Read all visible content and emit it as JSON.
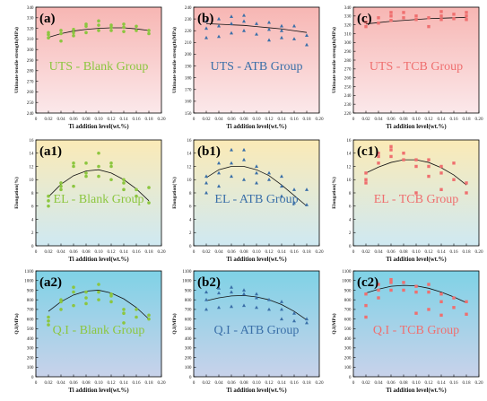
{
  "colors": {
    "blank": "#8cc63f",
    "atb": "#3a6fa8",
    "tcb": "#ef6f6f",
    "row_uts": [
      "#f7b6b3",
      "#fbe8ea"
    ],
    "row_el": [
      "#fbeab6",
      "#cfe9f2"
    ],
    "row_qi": [
      "#7fd2e6",
      "#c8d2ea"
    ]
  },
  "chart_data": [
    {
      "type": "scatter",
      "label": "(a)",
      "title": "UTS - Blank Group",
      "group": "blank",
      "ylabel": "Ultimate tensile strength(MPa)",
      "xlabel": "Ti addition level(wt.%)",
      "xlim": [
        0,
        0.2
      ],
      "xticks": [
        "0",
        "0.02",
        "0.04",
        "0.06",
        "0.08",
        "0.10",
        "0.12",
        "0.14",
        "0.16",
        "0.18",
        "0.20"
      ],
      "ylim": [
        240,
        340
      ],
      "yticks": [
        "240",
        "250",
        "260",
        "270",
        "280",
        "290",
        "300",
        "310",
        "320",
        "330",
        "340"
      ],
      "x": [
        0.02,
        0.02,
        0.02,
        0.04,
        0.04,
        0.04,
        0.06,
        0.06,
        0.06,
        0.08,
        0.08,
        0.08,
        0.1,
        0.1,
        0.1,
        0.12,
        0.12,
        0.12,
        0.14,
        0.14,
        0.14,
        0.16,
        0.16,
        0.18,
        0.18
      ],
      "y": [
        311,
        314,
        316,
        308,
        315,
        318,
        313,
        316,
        319,
        316,
        322,
        324,
        318,
        323,
        327,
        318,
        321,
        323,
        317,
        321,
        324,
        318,
        322,
        315,
        318
      ],
      "trend": [
        [
          0.02,
          311.5
        ],
        [
          0.04,
          315
        ],
        [
          0.06,
          317.5
        ],
        [
          0.08,
          319
        ],
        [
          0.1,
          320
        ],
        [
          0.12,
          320.5
        ],
        [
          0.14,
          320.5
        ],
        [
          0.16,
          319.5
        ],
        [
          0.18,
          318
        ]
      ]
    },
    {
      "type": "scatter",
      "label": "(b)",
      "title": "UTS - ATB Group",
      "group": "atb",
      "ylabel": "Ultimate tensile strength(MPa)",
      "xlabel": "Ti addition level(wt.%)",
      "xlim": [
        0,
        0.2
      ],
      "xticks": [
        "0",
        "0.02",
        "0.04",
        "0.06",
        "0.08",
        "0.10",
        "0.12",
        "0.14",
        "0.16",
        "0.18",
        "0.20"
      ],
      "ylim": [
        150,
        240
      ],
      "yticks": [
        "150",
        "160",
        "170",
        "180",
        "190",
        "200",
        "210",
        "220",
        "230",
        "240"
      ],
      "x": [
        0.02,
        0.02,
        0.02,
        0.04,
        0.04,
        0.04,
        0.06,
        0.06,
        0.06,
        0.08,
        0.08,
        0.08,
        0.1,
        0.1,
        0.12,
        0.12,
        0.12,
        0.14,
        0.14,
        0.14,
        0.16,
        0.16,
        0.18,
        0.18
      ],
      "y": [
        214,
        222,
        228,
        215,
        224,
        230,
        218,
        226,
        232,
        220,
        228,
        233,
        217,
        226,
        212,
        221,
        227,
        214,
        220,
        224,
        213,
        224,
        208,
        216
      ],
      "trend": [
        [
          0.02,
          226
        ],
        [
          0.04,
          225.5
        ],
        [
          0.06,
          225
        ],
        [
          0.08,
          224.5
        ],
        [
          0.1,
          223.5
        ],
        [
          0.12,
          222.5
        ],
        [
          0.14,
          221.5
        ],
        [
          0.16,
          220
        ],
        [
          0.18,
          218.5
        ]
      ]
    },
    {
      "type": "scatter",
      "label": "(c)",
      "title": "UTS - TCB Group",
      "group": "tcb",
      "ylabel": "Ultimate tensile strength(MPa)",
      "xlabel": "Ti addition level(wt.%)",
      "xlim": [
        0,
        0.2
      ],
      "xticks": [
        "0",
        "0.02",
        "0.04",
        "0.06",
        "0.08",
        "0.10",
        "0.12",
        "0.14",
        "0.16",
        "0.18",
        "0.20"
      ],
      "ylim": [
        220,
        340
      ],
      "yticks": [
        "220",
        "230",
        "240",
        "250",
        "260",
        "270",
        "280",
        "290",
        "300",
        "310",
        "320",
        "330",
        "340"
      ],
      "x": [
        0.02,
        0.02,
        0.04,
        0.04,
        0.06,
        0.06,
        0.06,
        0.08,
        0.08,
        0.1,
        0.1,
        0.12,
        0.12,
        0.14,
        0.14,
        0.14,
        0.16,
        0.16,
        0.18,
        0.18,
        0.18
      ],
      "y": [
        318,
        323,
        322,
        328,
        325,
        330,
        334,
        328,
        334,
        326,
        330,
        318,
        328,
        326,
        330,
        335,
        327,
        332,
        326,
        330,
        334
      ],
      "trend": [
        [
          0.02,
          321
        ],
        [
          0.04,
          322.5
        ],
        [
          0.06,
          324
        ],
        [
          0.08,
          325
        ],
        [
          0.1,
          326
        ],
        [
          0.12,
          327
        ],
        [
          0.14,
          327.5
        ],
        [
          0.16,
          328
        ],
        [
          0.18,
          328.5
        ]
      ]
    },
    {
      "type": "scatter",
      "label": "(a1)",
      "title": "EL - Blank Group",
      "group": "blank",
      "ylabel": "Elongation(%)",
      "xlabel": "Ti addition level(wt.%)",
      "xlim": [
        0,
        0.2
      ],
      "xticks": [
        "0",
        "0.02",
        "0.04",
        "0.06",
        "0.08",
        "0.10",
        "0.12",
        "0.14",
        "0.16",
        "0.18",
        "0.20"
      ],
      "ylim": [
        0,
        16
      ],
      "yticks": [
        "0",
        "2",
        "4",
        "6",
        "8",
        "10",
        "12",
        "14",
        "16"
      ],
      "x": [
        0.02,
        0.02,
        0.02,
        0.04,
        0.04,
        0.04,
        0.06,
        0.06,
        0.06,
        0.08,
        0.08,
        0.08,
        0.1,
        0.1,
        0.1,
        0.12,
        0.12,
        0.12,
        0.14,
        0.14,
        0.14,
        0.16,
        0.16,
        0.18,
        0.18
      ],
      "y": [
        6,
        6.8,
        7.5,
        8.5,
        9,
        9.5,
        9,
        12,
        12.5,
        10.5,
        11,
        12.5,
        10.5,
        12,
        14,
        10,
        12,
        12.5,
        8.5,
        9.5,
        10,
        7.5,
        8.5,
        6.5,
        8.8
      ],
      "trend": [
        [
          0.02,
          7.4
        ],
        [
          0.04,
          9.3
        ],
        [
          0.06,
          10.6
        ],
        [
          0.08,
          11.3
        ],
        [
          0.1,
          11.5
        ],
        [
          0.12,
          11
        ],
        [
          0.14,
          10
        ],
        [
          0.16,
          8.6
        ],
        [
          0.18,
          6.8
        ]
      ]
    },
    {
      "type": "scatter",
      "label": "(b1)",
      "title": "EL - ATB Group",
      "group": "atb",
      "ylabel": "Elongation(%)",
      "xlabel": "Ti addition level(wt.%)",
      "xlim": [
        0,
        0.2
      ],
      "xticks": [
        "0",
        "0.02",
        "0.04",
        "0.06",
        "0.08",
        "0.10",
        "0.12",
        "0.14",
        "0.16",
        "0.18",
        "0.20"
      ],
      "ylim": [
        0,
        16
      ],
      "yticks": [
        "0",
        "2",
        "4",
        "6",
        "8",
        "10",
        "12",
        "14",
        "16"
      ],
      "x": [
        0.02,
        0.02,
        0.02,
        0.04,
        0.04,
        0.04,
        0.06,
        0.06,
        0.06,
        0.08,
        0.08,
        0.08,
        0.1,
        0.1,
        0.1,
        0.12,
        0.12,
        0.14,
        0.14,
        0.14,
        0.16,
        0.16,
        0.18,
        0.18
      ],
      "y": [
        8,
        9.5,
        10.5,
        9,
        11,
        12.5,
        10.5,
        12.5,
        14.5,
        10,
        13,
        14.5,
        9.5,
        11,
        12,
        10,
        11,
        7.5,
        9,
        10.5,
        6.5,
        8.5,
        6.2,
        8.5
      ],
      "trend": [
        [
          0.02,
          10.3
        ],
        [
          0.04,
          11.5
        ],
        [
          0.06,
          12
        ],
        [
          0.08,
          12
        ],
        [
          0.1,
          11.5
        ],
        [
          0.12,
          10.6
        ],
        [
          0.14,
          9.2
        ],
        [
          0.16,
          7.6
        ],
        [
          0.18,
          6
        ]
      ]
    },
    {
      "type": "scatter",
      "label": "(c1)",
      "title": "EL - TCB Group",
      "group": "tcb",
      "ylabel": "Elongation(%)",
      "xlabel": "Ti addition level(wt.%)",
      "xlim": [
        0,
        0.2
      ],
      "xticks": [
        "0",
        "0.02",
        "0.04",
        "0.06",
        "0.08",
        "0.10",
        "0.12",
        "0.14",
        "0.16",
        "0.18",
        "0.20"
      ],
      "ylim": [
        0,
        16
      ],
      "yticks": [
        "0",
        "2",
        "4",
        "6",
        "8",
        "10",
        "12",
        "14",
        "16"
      ],
      "x": [
        0.02,
        0.02,
        0.02,
        0.04,
        0.04,
        0.04,
        0.06,
        0.06,
        0.06,
        0.08,
        0.08,
        0.1,
        0.1,
        0.1,
        0.12,
        0.12,
        0.12,
        0.14,
        0.14,
        0.14,
        0.16,
        0.16,
        0.18,
        0.18
      ],
      "y": [
        9.5,
        10,
        11,
        12.5,
        13.5,
        14,
        13.5,
        14.5,
        15,
        13,
        14,
        12,
        13,
        8,
        10.5,
        12,
        13,
        8.5,
        11,
        12,
        10,
        12.5,
        8,
        9.5
      ],
      "trend": [
        [
          0.02,
          11
        ],
        [
          0.04,
          11.9
        ],
        [
          0.06,
          12.6
        ],
        [
          0.08,
          13
        ],
        [
          0.1,
          13
        ],
        [
          0.12,
          12.6
        ],
        [
          0.14,
          11.8
        ],
        [
          0.16,
          10.7
        ],
        [
          0.18,
          9.2
        ]
      ]
    },
    {
      "type": "scatter",
      "label": "(a2)",
      "title": "Q.I - Blank Group",
      "group": "blank",
      "ylabel": "Q.I(MPa)",
      "xlabel": "Ti addition level(wt.%)",
      "xlim": [
        0,
        0.2
      ],
      "xticks": [
        "0",
        "0.02",
        "0.04",
        "0.06",
        "0.08",
        "0.10",
        "0.12",
        "0.14",
        "0.16",
        "0.18",
        "0.20"
      ],
      "ylim": [
        0,
        1100
      ],
      "yticks": [
        "0",
        "100",
        "200",
        "300",
        "400",
        "500",
        "600",
        "700",
        "800",
        "900",
        "1000",
        "1100"
      ],
      "x": [
        0.02,
        0.02,
        0.02,
        0.04,
        0.04,
        0.04,
        0.06,
        0.06,
        0.06,
        0.08,
        0.08,
        0.08,
        0.1,
        0.1,
        0.1,
        0.12,
        0.12,
        0.12,
        0.14,
        0.14,
        0.14,
        0.16,
        0.16,
        0.18,
        0.18
      ],
      "y": [
        540,
        580,
        620,
        700,
        780,
        800,
        740,
        880,
        930,
        760,
        820,
        880,
        800,
        880,
        960,
        780,
        840,
        860,
        560,
        660,
        700,
        620,
        700,
        600,
        640
      ],
      "trend": [
        [
          0.02,
          680
        ],
        [
          0.04,
          780
        ],
        [
          0.06,
          850
        ],
        [
          0.08,
          890
        ],
        [
          0.1,
          900
        ],
        [
          0.12,
          870
        ],
        [
          0.14,
          810
        ],
        [
          0.16,
          720
        ],
        [
          0.18,
          600
        ]
      ]
    },
    {
      "type": "scatter",
      "label": "(b2)",
      "title": "Q.I - ATB Group",
      "group": "atb",
      "ylabel": "Q.I(MPa)",
      "xlabel": "Ti addition level(wt.%)",
      "xlim": [
        0,
        0.2
      ],
      "xticks": [
        "0",
        "0.02",
        "0.04",
        "0.06",
        "0.08",
        "0.10",
        "0.12",
        "0.14",
        "0.16",
        "0.18",
        "0.20"
      ],
      "ylim": [
        0,
        1100
      ],
      "yticks": [
        "0",
        "100",
        "200",
        "300",
        "400",
        "500",
        "600",
        "700",
        "800",
        "900",
        "1000",
        "1100"
      ],
      "x": [
        0.02,
        0.02,
        0.02,
        0.04,
        0.04,
        0.04,
        0.06,
        0.06,
        0.06,
        0.08,
        0.08,
        0.08,
        0.1,
        0.1,
        0.1,
        0.12,
        0.12,
        0.14,
        0.14,
        0.14,
        0.16,
        0.16,
        0.18,
        0.18
      ],
      "y": [
        700,
        800,
        880,
        720,
        870,
        920,
        730,
        880,
        930,
        740,
        860,
        900,
        720,
        820,
        860,
        700,
        800,
        600,
        700,
        780,
        580,
        660,
        560,
        600
      ],
      "trend": [
        [
          0.02,
          790
        ],
        [
          0.04,
          820
        ],
        [
          0.06,
          840
        ],
        [
          0.08,
          845
        ],
        [
          0.1,
          830
        ],
        [
          0.12,
          800
        ],
        [
          0.14,
          750
        ],
        [
          0.16,
          680
        ],
        [
          0.18,
          590
        ]
      ]
    },
    {
      "type": "scatter",
      "label": "(c2)",
      "title": "Q.I - TCB Group",
      "group": "tcb",
      "ylabel": "Q.I(MPa)",
      "xlabel": "Ti addition level(wt.%)",
      "xlim": [
        0,
        0.2
      ],
      "xticks": [
        "0",
        "0.02",
        "0.04",
        "0.06",
        "0.08",
        "0.10",
        "0.12",
        "0.14",
        "0.16",
        "0.18",
        "0.20"
      ],
      "ylim": [
        0,
        1100
      ],
      "yticks": [
        "0",
        "100",
        "200",
        "300",
        "400",
        "500",
        "600",
        "700",
        "800",
        "900",
        "1000",
        "1100"
      ],
      "x": [
        0.02,
        0.02,
        0.02,
        0.04,
        0.04,
        0.04,
        0.06,
        0.06,
        0.06,
        0.08,
        0.08,
        0.1,
        0.1,
        0.1,
        0.12,
        0.12,
        0.12,
        0.14,
        0.14,
        0.14,
        0.16,
        0.16,
        0.18,
        0.18
      ],
      "y": [
        620,
        740,
        860,
        820,
        900,
        960,
        900,
        980,
        1010,
        900,
        980,
        660,
        880,
        940,
        700,
        880,
        960,
        640,
        780,
        860,
        720,
        820,
        650,
        780
      ],
      "trend": [
        [
          0.02,
          870
        ],
        [
          0.04,
          910
        ],
        [
          0.06,
          940
        ],
        [
          0.08,
          950
        ],
        [
          0.1,
          945
        ],
        [
          0.12,
          920
        ],
        [
          0.14,
          880
        ],
        [
          0.16,
          830
        ],
        [
          0.18,
          770
        ]
      ]
    }
  ]
}
